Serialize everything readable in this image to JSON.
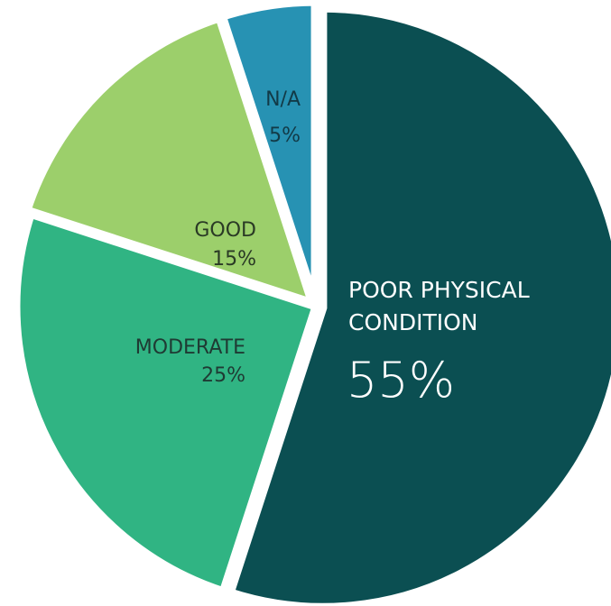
{
  "chart_data": {
    "type": "pie",
    "slices": [
      {
        "category": "POOR PHYSICAL CONDITION",
        "label_line1": "POOR PHYSICAL",
        "label_line2": "CONDITION",
        "value": 55,
        "value_label": "55%",
        "color": "#0b4f52",
        "text_color": "#ffffff"
      },
      {
        "category": "MODERATE",
        "label_line1": "MODERATE",
        "value": 25,
        "value_label": "25%",
        "color": "#30b483",
        "text_color": "#1f3a33"
      },
      {
        "category": "GOOD",
        "label_line1": "GOOD",
        "value": 15,
        "value_label": "15%",
        "color": "#9ccf6b",
        "text_color": "#2a3a25"
      },
      {
        "category": "N/A",
        "label_line1": "N/A",
        "value": 5,
        "value_label": "5%",
        "color": "#2792b3",
        "text_color": "#123a47"
      }
    ]
  }
}
